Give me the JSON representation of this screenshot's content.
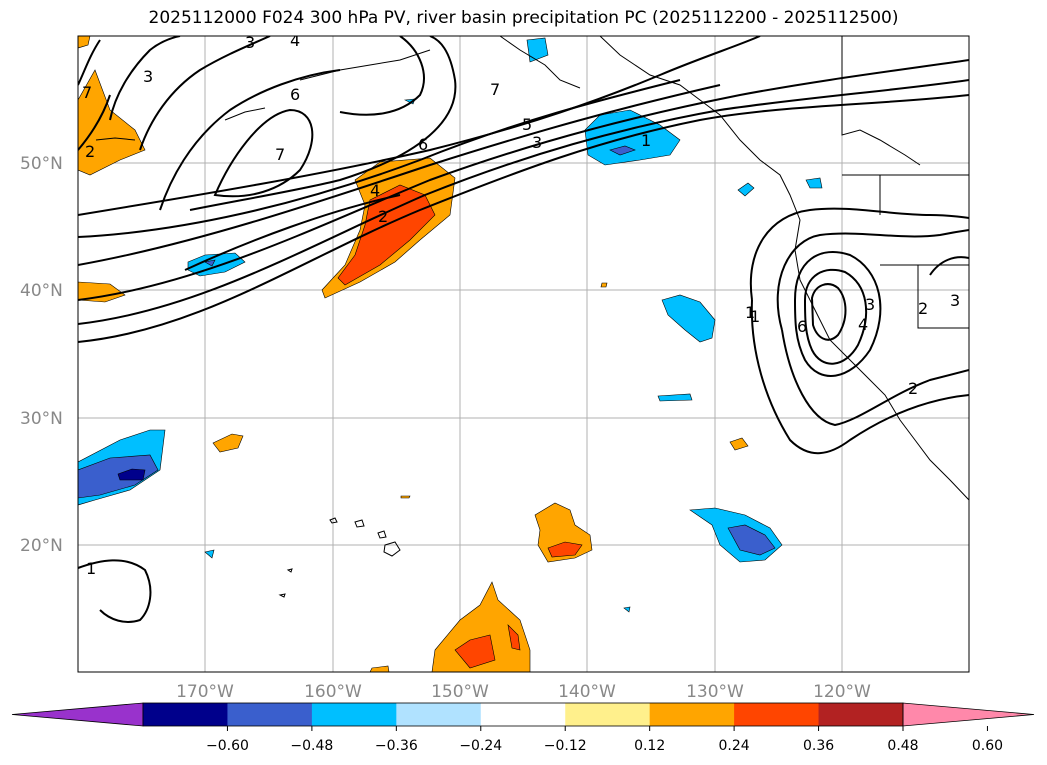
{
  "title": "2025112000 F024 300 hPa PV, river basin precipitation PC (2025112200 - 2025112500)",
  "lat_labels": [
    "50°N",
    "40°N",
    "30°N",
    "20°N"
  ],
  "lon_labels": [
    "170°W",
    "160°W",
    "150°W",
    "140°W",
    "130°W",
    "120°W"
  ],
  "contour_labels": [
    "3",
    "4",
    "6",
    "7",
    "7",
    "6",
    "5",
    "3",
    "1",
    "1",
    "2",
    "4",
    "2",
    "7",
    "1",
    "6",
    "3",
    "2",
    "3",
    "1",
    "2",
    "3",
    "4"
  ],
  "colorbar": {
    "ticks": [
      "−0.60",
      "−0.48",
      "−0.36",
      "−0.24",
      "−0.12",
      "0.12",
      "0.24",
      "0.36",
      "0.48",
      "0.60"
    ],
    "colors": [
      "#9932cc",
      "#00008b",
      "#3a5fcd",
      "#00bfff",
      "#b0e2ff",
      "#ffffff",
      "#fff08c",
      "#ffa500",
      "#ff4500",
      "#b22222",
      "#ff88aa"
    ]
  }
}
